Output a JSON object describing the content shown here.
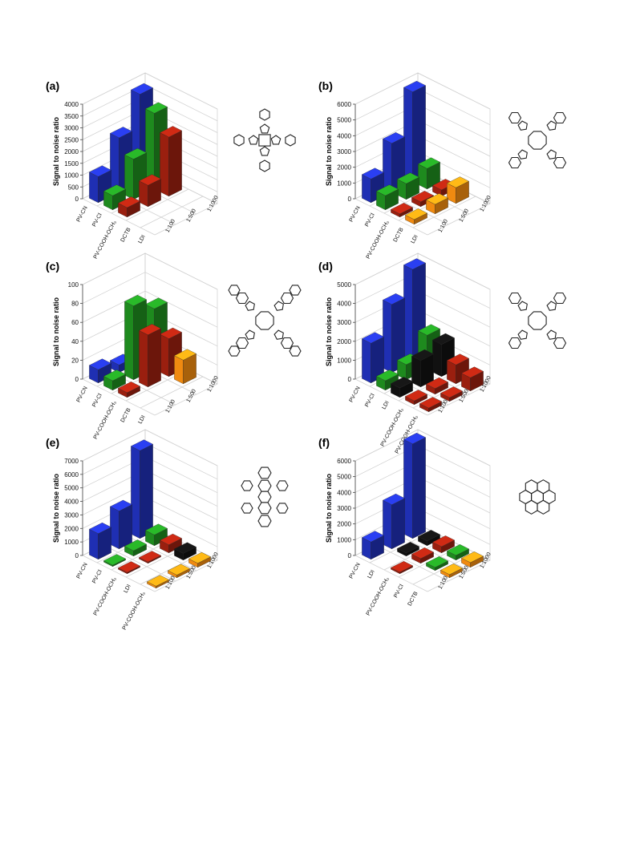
{
  "colors": {
    "PV-CN": "#1f2fb3",
    "PV-Cl": "#1e8a1e",
    "PV-COOH-OCH3": "#9a1f0f",
    "DCTB": "#f08a10",
    "LDI": "#111111"
  },
  "ylabel": "Signal to noise ratio",
  "charts": [
    {
      "label": "(a)",
      "molecule": "porphyrin-methoxyphenyl",
      "yticks": [
        "0",
        "500",
        "1000",
        "1500",
        "2000",
        "2500",
        "3000",
        "3500",
        "4000"
      ],
      "ymax": 4000,
      "rows": [
        "PV-CN",
        "PV-Cl",
        "PV-COOH-OCH3",
        "DCTB",
        "LDI"
      ],
      "row_labels": [
        "PV-CN",
        "PV-Cl",
        "PV-COOH-OCH₃",
        "DCTB",
        "LDI"
      ],
      "ratios": [
        "1:100",
        "1:500",
        "1:1000"
      ],
      "values": [
        [
          1100,
          2300,
          3700
        ],
        [
          600,
          1700,
          3200
        ],
        [
          400,
          900,
          2500
        ],
        [
          0,
          0,
          0
        ],
        [
          0,
          0,
          0
        ]
      ]
    },
    {
      "label": "(b)",
      "molecule": "phthalocyanine",
      "yticks": [
        "0",
        "1000",
        "2000",
        "3000",
        "4000",
        "5000",
        "6000"
      ],
      "ymax": 6000,
      "rows": [
        "PV-CN",
        "PV-Cl",
        "PV-COOH-OCH3",
        "DCTB",
        "LDI"
      ],
      "row_labels": [
        "PV-CN",
        "PV-Cl",
        "PV-COOH-OCH₃",
        "DCTB",
        "LDI"
      ],
      "ratios": [
        "1:100",
        "1:500",
        "1:1000"
      ],
      "values": [
        [
          1500,
          3100,
          5700
        ],
        [
          900,
          1000,
          1300
        ],
        [
          200,
          300,
          400
        ],
        [
          300,
          600,
          1000
        ],
        [
          0,
          0,
          0
        ]
      ]
    },
    {
      "label": "(c)",
      "molecule": "naphthalocyanine",
      "yticks": [
        "0",
        "20",
        "40",
        "60",
        "80",
        "100"
      ],
      "ymax": 100,
      "rows": [
        "PV-CN",
        "PV-Cl",
        "PV-COOH-OCH3",
        "DCTB",
        "LDI"
      ],
      "row_labels": [
        "PV-CN",
        "PV-Cl",
        "PV-COOH-OCH₃",
        "DCTB",
        "LDI"
      ],
      "ratios": [
        "1:100",
        "1:500",
        "1:1000"
      ],
      "values": [
        [
          14,
          8,
          2
        ],
        [
          10,
          78,
          64
        ],
        [
          5,
          55,
          40
        ],
        [
          0,
          0,
          25
        ],
        [
          0,
          0,
          0
        ]
      ]
    },
    {
      "label": "(d)",
      "molecule": "zinc-phthalocyanine",
      "yticks": [
        "0",
        "1000",
        "2000",
        "3000",
        "4000",
        "5000"
      ],
      "ymax": 5000,
      "rows": [
        "PV-CN",
        "PV-Cl",
        "LDI",
        "PV-COOH-OCH3",
        "PV-COOH-OCH3b"
      ],
      "row_labels": [
        "PV-CN",
        "PV-Cl",
        "LDI",
        "PV-COOH-OCH₃",
        "PV-COOH-OCH₃"
      ],
      "ratios": [
        "1:100",
        "1:500",
        "1:1000"
      ],
      "values": [
        [
          2100,
          3600,
          4900
        ],
        [
          500,
          800,
          1800
        ],
        [
          500,
          1400,
          1700
        ],
        [
          200,
          300,
          1000
        ],
        [
          200,
          200,
          700
        ]
      ]
    },
    {
      "label": "(e)",
      "molecule": "tetraphenylpentacene",
      "yticks": [
        "0",
        "1000",
        "2000",
        "3000",
        "4000",
        "5000",
        "6000",
        "7000"
      ],
      "ymax": 7000,
      "rows": [
        "PV-CN",
        "PV-Cl",
        "PV-COOH-OCH3",
        "LDI",
        "DCTB"
      ],
      "row_labels": [
        "PV-CN",
        "PV-Cl",
        "PV-COOH-OCH₃",
        "LDI",
        "PV-COOH-OCH₃"
      ],
      "ratios": [
        "1:100",
        "1:500",
        "1:1000"
      ],
      "values": [
        [
          1900,
          2800,
          6500
        ],
        [
          100,
          400,
          800
        ],
        [
          100,
          100,
          600
        ],
        [
          0,
          0,
          500
        ],
        [
          150,
          200,
          300
        ]
      ]
    },
    {
      "label": "(f)",
      "molecule": "coronene",
      "yticks": [
        "0",
        "1000",
        "2000",
        "3000",
        "4000",
        "5000",
        "6000"
      ],
      "ymax": 6000,
      "rows": [
        "PV-CN",
        "LDI",
        "PV-COOH-OCH3",
        "PV-Cl",
        "DCTB"
      ],
      "row_labels": [
        "PV-CN",
        "LDI",
        "PV-COOH-OCH₃",
        "PV-Cl",
        "DCTB"
      ],
      "ratios": [
        "1:100",
        "1:500",
        "1:1000"
      ],
      "values": [
        [
          1100,
          2800,
          6000
        ],
        [
          0,
          200,
          300
        ],
        [
          100,
          300,
          400
        ],
        [
          0,
          200,
          300
        ],
        [
          0,
          200,
          300
        ]
      ]
    }
  ],
  "chart_data": [
    {
      "type": "bar",
      "title": "(a)",
      "ylabel": "Signal to noise ratio",
      "ylim": [
        0,
        4000
      ],
      "categories": [
        "PV-CN",
        "PV-Cl",
        "PV-COOH-OCH3",
        "DCTB",
        "LDI"
      ],
      "series": [
        {
          "name": "1:100",
          "values": [
            1100,
            600,
            400,
            0,
            0
          ]
        },
        {
          "name": "1:500",
          "values": [
            2300,
            1700,
            900,
            0,
            0
          ]
        },
        {
          "name": "1:1000",
          "values": [
            3700,
            3200,
            2500,
            0,
            0
          ]
        }
      ]
    },
    {
      "type": "bar",
      "title": "(b)",
      "ylabel": "Signal to noise ratio",
      "ylim": [
        0,
        6000
      ],
      "categories": [
        "PV-CN",
        "PV-Cl",
        "PV-COOH-OCH3",
        "DCTB",
        "LDI"
      ],
      "series": [
        {
          "name": "1:100",
          "values": [
            1500,
            900,
            200,
            300,
            0
          ]
        },
        {
          "name": "1:500",
          "values": [
            3100,
            1000,
            300,
            600,
            0
          ]
        },
        {
          "name": "1:1000",
          "values": [
            5700,
            1300,
            400,
            1000,
            0
          ]
        }
      ]
    },
    {
      "type": "bar",
      "title": "(c)",
      "ylabel": "Signal to noise ratio",
      "ylim": [
        0,
        100
      ],
      "categories": [
        "PV-CN",
        "PV-Cl",
        "PV-COOH-OCH3",
        "DCTB",
        "LDI"
      ],
      "series": [
        {
          "name": "1:100",
          "values": [
            14,
            10,
            5,
            0,
            0
          ]
        },
        {
          "name": "1:500",
          "values": [
            8,
            78,
            55,
            0,
            0
          ]
        },
        {
          "name": "1:1000",
          "values": [
            2,
            64,
            40,
            25,
            0
          ]
        }
      ]
    },
    {
      "type": "bar",
      "title": "(d)",
      "ylabel": "Signal to noise ratio",
      "ylim": [
        0,
        5000
      ],
      "categories": [
        "PV-CN",
        "PV-Cl",
        "LDI",
        "PV-COOH-OCH3",
        "PV-COOH-OCH3"
      ],
      "series": [
        {
          "name": "1:100",
          "values": [
            2100,
            500,
            500,
            200,
            200
          ]
        },
        {
          "name": "1:500",
          "values": [
            3600,
            800,
            1400,
            300,
            200
          ]
        },
        {
          "name": "1:1000",
          "values": [
            4900,
            1800,
            1700,
            1000,
            700
          ]
        }
      ]
    },
    {
      "type": "bar",
      "title": "(e)",
      "ylabel": "Signal to noise ratio",
      "ylim": [
        0,
        7000
      ],
      "categories": [
        "PV-CN",
        "PV-Cl",
        "PV-COOH-OCH3",
        "LDI",
        "PV-COOH-OCH3"
      ],
      "series": [
        {
          "name": "1:100",
          "values": [
            1900,
            100,
            100,
            0,
            150
          ]
        },
        {
          "name": "1:500",
          "values": [
            2800,
            400,
            100,
            0,
            200
          ]
        },
        {
          "name": "1:1000",
          "values": [
            6500,
            800,
            600,
            500,
            300
          ]
        }
      ]
    },
    {
      "type": "bar",
      "title": "(f)",
      "ylabel": "Signal to noise ratio",
      "ylim": [
        0,
        6000
      ],
      "categories": [
        "PV-CN",
        "LDI",
        "PV-COOH-OCH3",
        "PV-Cl",
        "DCTB"
      ],
      "series": [
        {
          "name": "1:100",
          "values": [
            1100,
            0,
            100,
            0,
            0
          ]
        },
        {
          "name": "1:500",
          "values": [
            2800,
            200,
            300,
            200,
            200
          ]
        },
        {
          "name": "1:1000",
          "values": [
            6000,
            300,
            400,
            300,
            300
          ]
        }
      ]
    }
  ]
}
